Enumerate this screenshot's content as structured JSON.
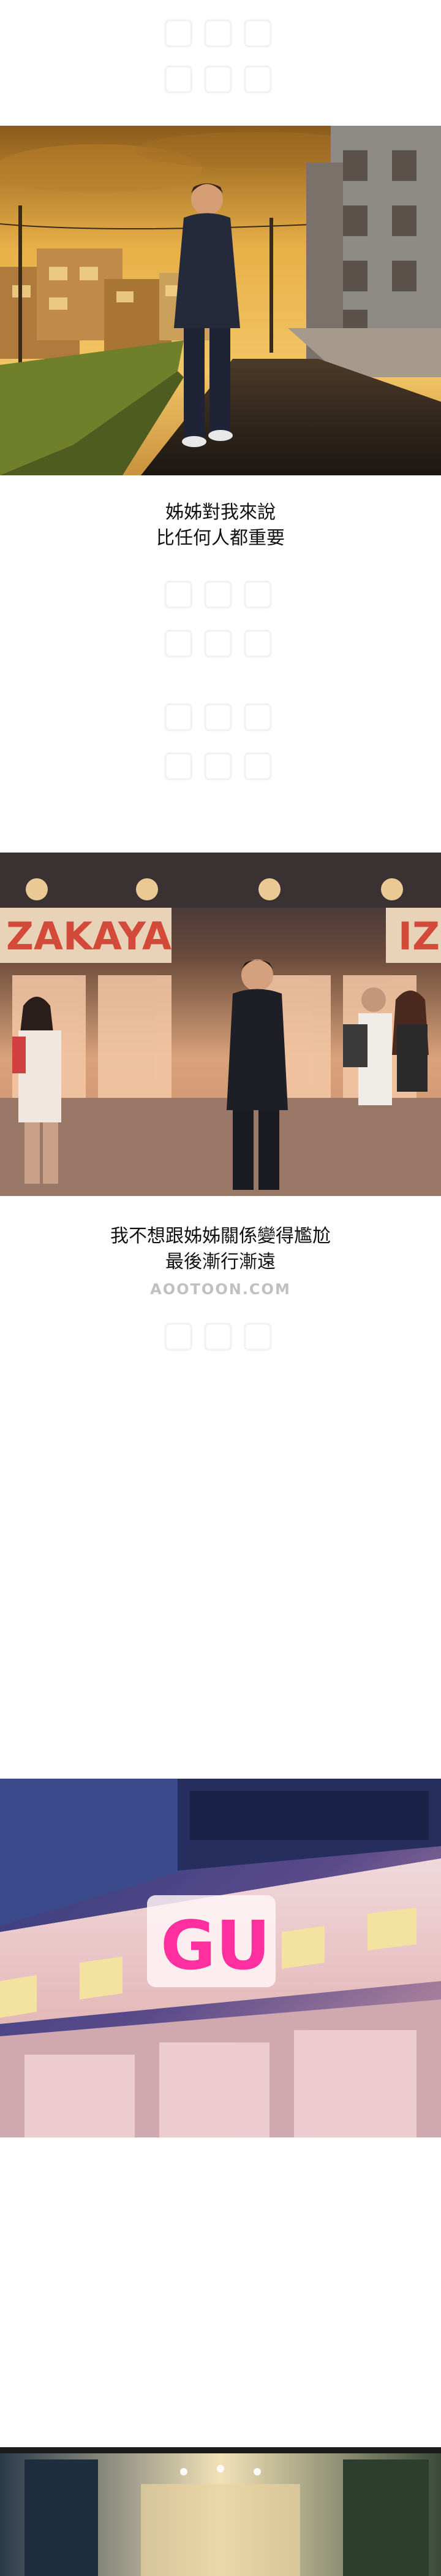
{
  "captions": {
    "first": [
      "姊姊對我來說",
      "比任何人都重要"
    ],
    "second": [
      "我不想跟姊姊關係變得尷尬",
      "最後漸行漸遠"
    ]
  },
  "signs": {
    "izakaya_left": "ZAKAYA",
    "izakaya_right": "IZ",
    "gu_logo": "GU"
  },
  "watermark": {
    "site": "AOOTOON.COM"
  },
  "colors": {
    "sunset": "#d89a3a",
    "night_blue": "#3b3a6a",
    "gu_pink": "#ff2fa0"
  }
}
